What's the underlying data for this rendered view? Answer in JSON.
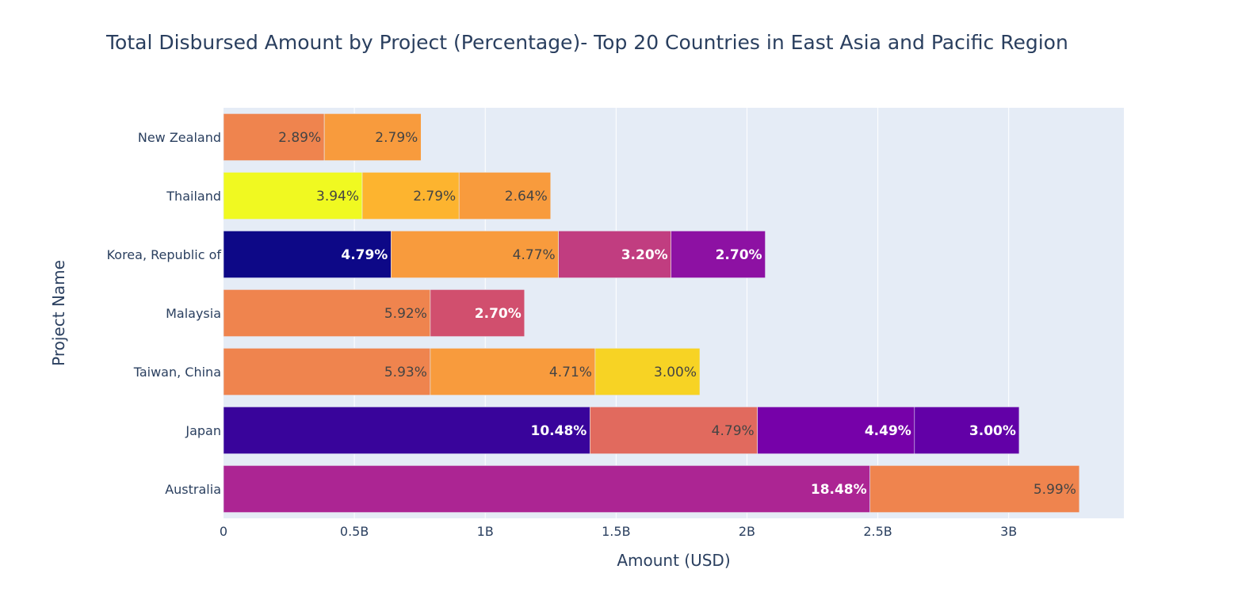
{
  "chart_data": {
    "type": "bar",
    "orientation": "horizontal",
    "barmode": "stack",
    "title": "Total Disbursed Amount by Project (Percentage)- Top 20 Countries in East Asia and Pacific Region",
    "xlabel": "Amount (USD)",
    "ylabel": "Project Name",
    "xlim": [
      0,
      3.44
    ],
    "x_unit": "B USD",
    "x_ticks": [
      0,
      0.5,
      1,
      1.5,
      2,
      2.5,
      3
    ],
    "x_tick_labels": [
      "0",
      "0.5B",
      "1B",
      "1.5B",
      "2B",
      "2.5B",
      "3B"
    ],
    "grid": "vertical",
    "categories": [
      "Australia",
      "Japan",
      "Taiwan, China",
      "Malaysia",
      "Korea, Republic of",
      "Thailand",
      "New Zealand"
    ],
    "stacks": [
      {
        "category": "Australia",
        "segments": [
          {
            "value": 2.47,
            "label": "18.48%",
            "color": "#ac2593",
            "text_color": "#ffffff"
          },
          {
            "value": 0.8,
            "label": "5.99%",
            "color": "#ef844e",
            "text_color": "#444444"
          }
        ]
      },
      {
        "category": "Japan",
        "segments": [
          {
            "value": 1.4,
            "label": "10.48%",
            "color": "#39049b",
            "text_color": "#ffffff"
          },
          {
            "value": 0.64,
            "label": "4.79%",
            "color": "#e16a5e",
            "text_color": "#444444"
          },
          {
            "value": 0.6,
            "label": "4.49%",
            "color": "#7601a9",
            "text_color": "#ffffff"
          },
          {
            "value": 0.4,
            "label": "3.00%",
            "color": "#6200a7",
            "text_color": "#ffffff"
          }
        ]
      },
      {
        "category": "Taiwan, China",
        "segments": [
          {
            "value": 0.79,
            "label": "5.93%",
            "color": "#ef844e",
            "text_color": "#444444"
          },
          {
            "value": 0.63,
            "label": "4.71%",
            "color": "#f89b3d",
            "text_color": "#444444"
          },
          {
            "value": 0.4,
            "label": "3.00%",
            "color": "#f7d324",
            "text_color": "#444444"
          }
        ]
      },
      {
        "category": "Malaysia",
        "segments": [
          {
            "value": 0.79,
            "label": "5.92%",
            "color": "#ef844e",
            "text_color": "#444444"
          },
          {
            "value": 0.36,
            "label": "2.70%",
            "color": "#d14f6e",
            "text_color": "#ffffff"
          }
        ]
      },
      {
        "category": "Korea, Republic of",
        "segments": [
          {
            "value": 0.64,
            "label": "4.79%",
            "color": "#0d0887",
            "text_color": "#ffffff"
          },
          {
            "value": 0.64,
            "label": "4.77%",
            "color": "#f89b3d",
            "text_color": "#444444"
          },
          {
            "value": 0.43,
            "label": "3.20%",
            "color": "#c13d80",
            "text_color": "#ffffff"
          },
          {
            "value": 0.36,
            "label": "2.70%",
            "color": "#8d11a3",
            "text_color": "#ffffff"
          }
        ]
      },
      {
        "category": "Thailand",
        "segments": [
          {
            "value": 0.53,
            "label": "3.94%",
            "color": "#f0f921",
            "text_color": "#444444"
          },
          {
            "value": 0.37,
            "label": "2.79%",
            "color": "#fdb42f",
            "text_color": "#444444"
          },
          {
            "value": 0.35,
            "label": "2.64%",
            "color": "#f89b3d",
            "text_color": "#444444"
          }
        ]
      },
      {
        "category": "New Zealand",
        "segments": [
          {
            "value": 0.385,
            "label": "2.89%",
            "color": "#ef844e",
            "text_color": "#444444"
          },
          {
            "value": 0.37,
            "label": "2.79%",
            "color": "#f89b3d",
            "text_color": "#444444"
          }
        ]
      }
    ],
    "colors": {
      "plot_background": "#e5ecf6",
      "gridline": "#ffffff",
      "text": "#2a3f5f"
    }
  }
}
